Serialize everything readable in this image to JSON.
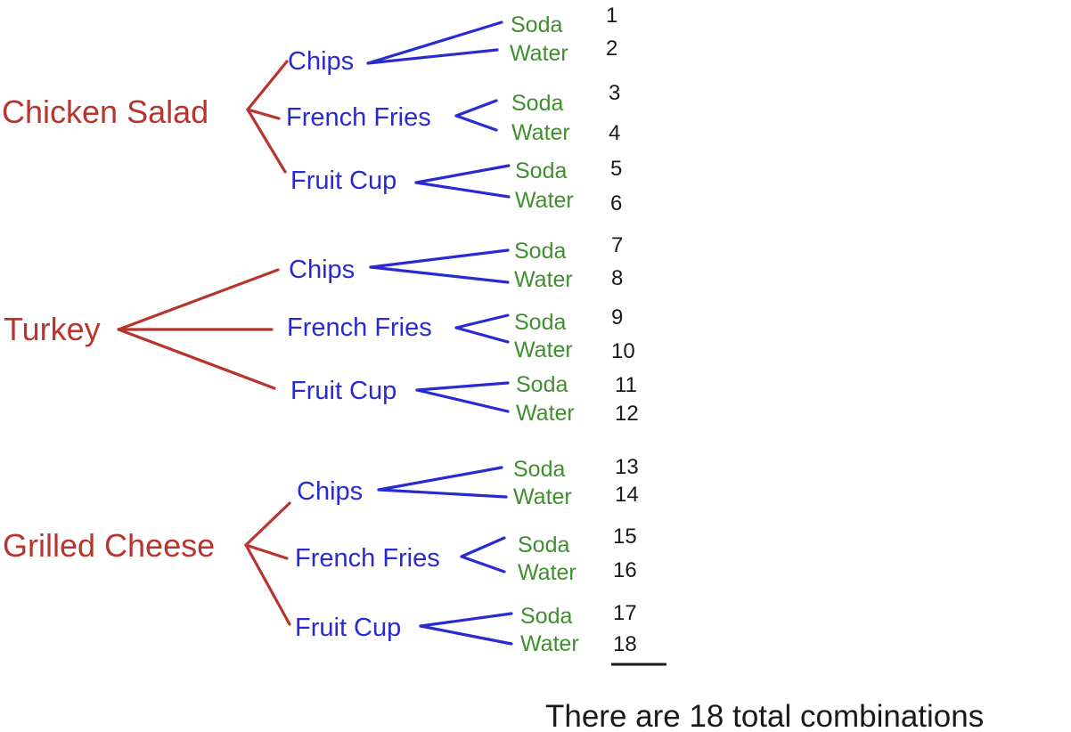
{
  "colors": {
    "main": "#b8342e",
    "side": "#2a2ad2",
    "drink": "#3f8f2f",
    "number": "#1a1a1a",
    "total": "#1a1a1a"
  },
  "tree": [
    {
      "label": "Chicken Salad",
      "sides": [
        {
          "label": "Chips",
          "drinks": [
            {
              "label": "Soda",
              "number": "1"
            },
            {
              "label": "Water",
              "number": "2"
            }
          ]
        },
        {
          "label": "French Fries",
          "drinks": [
            {
              "label": "Soda",
              "number": "3"
            },
            {
              "label": "Water",
              "number": "4"
            }
          ]
        },
        {
          "label": "Fruit Cup",
          "drinks": [
            {
              "label": "Soda",
              "number": "5"
            },
            {
              "label": "Water",
              "number": "6"
            }
          ]
        }
      ]
    },
    {
      "label": "Turkey",
      "sides": [
        {
          "label": "Chips",
          "drinks": [
            {
              "label": "Soda",
              "number": "7"
            },
            {
              "label": "Water",
              "number": "8"
            }
          ]
        },
        {
          "label": "French Fries",
          "drinks": [
            {
              "label": "Soda",
              "number": "9"
            },
            {
              "label": "Water",
              "number": "10"
            }
          ]
        },
        {
          "label": "Fruit Cup",
          "drinks": [
            {
              "label": "Soda",
              "number": "11"
            },
            {
              "label": "Water",
              "number": "12"
            }
          ]
        }
      ]
    },
    {
      "label": "Grilled Cheese",
      "sides": [
        {
          "label": "Chips",
          "drinks": [
            {
              "label": "Soda",
              "number": "13"
            },
            {
              "label": "Water",
              "number": "14"
            }
          ]
        },
        {
          "label": "French Fries",
          "drinks": [
            {
              "label": "Soda",
              "number": "15"
            },
            {
              "label": "Water",
              "number": "16"
            }
          ]
        },
        {
          "label": "Fruit Cup",
          "drinks": [
            {
              "label": "Soda",
              "number": "17"
            },
            {
              "label": "Water",
              "number": "18"
            }
          ]
        }
      ]
    }
  ],
  "total_text": "There are 18 total combinations"
}
